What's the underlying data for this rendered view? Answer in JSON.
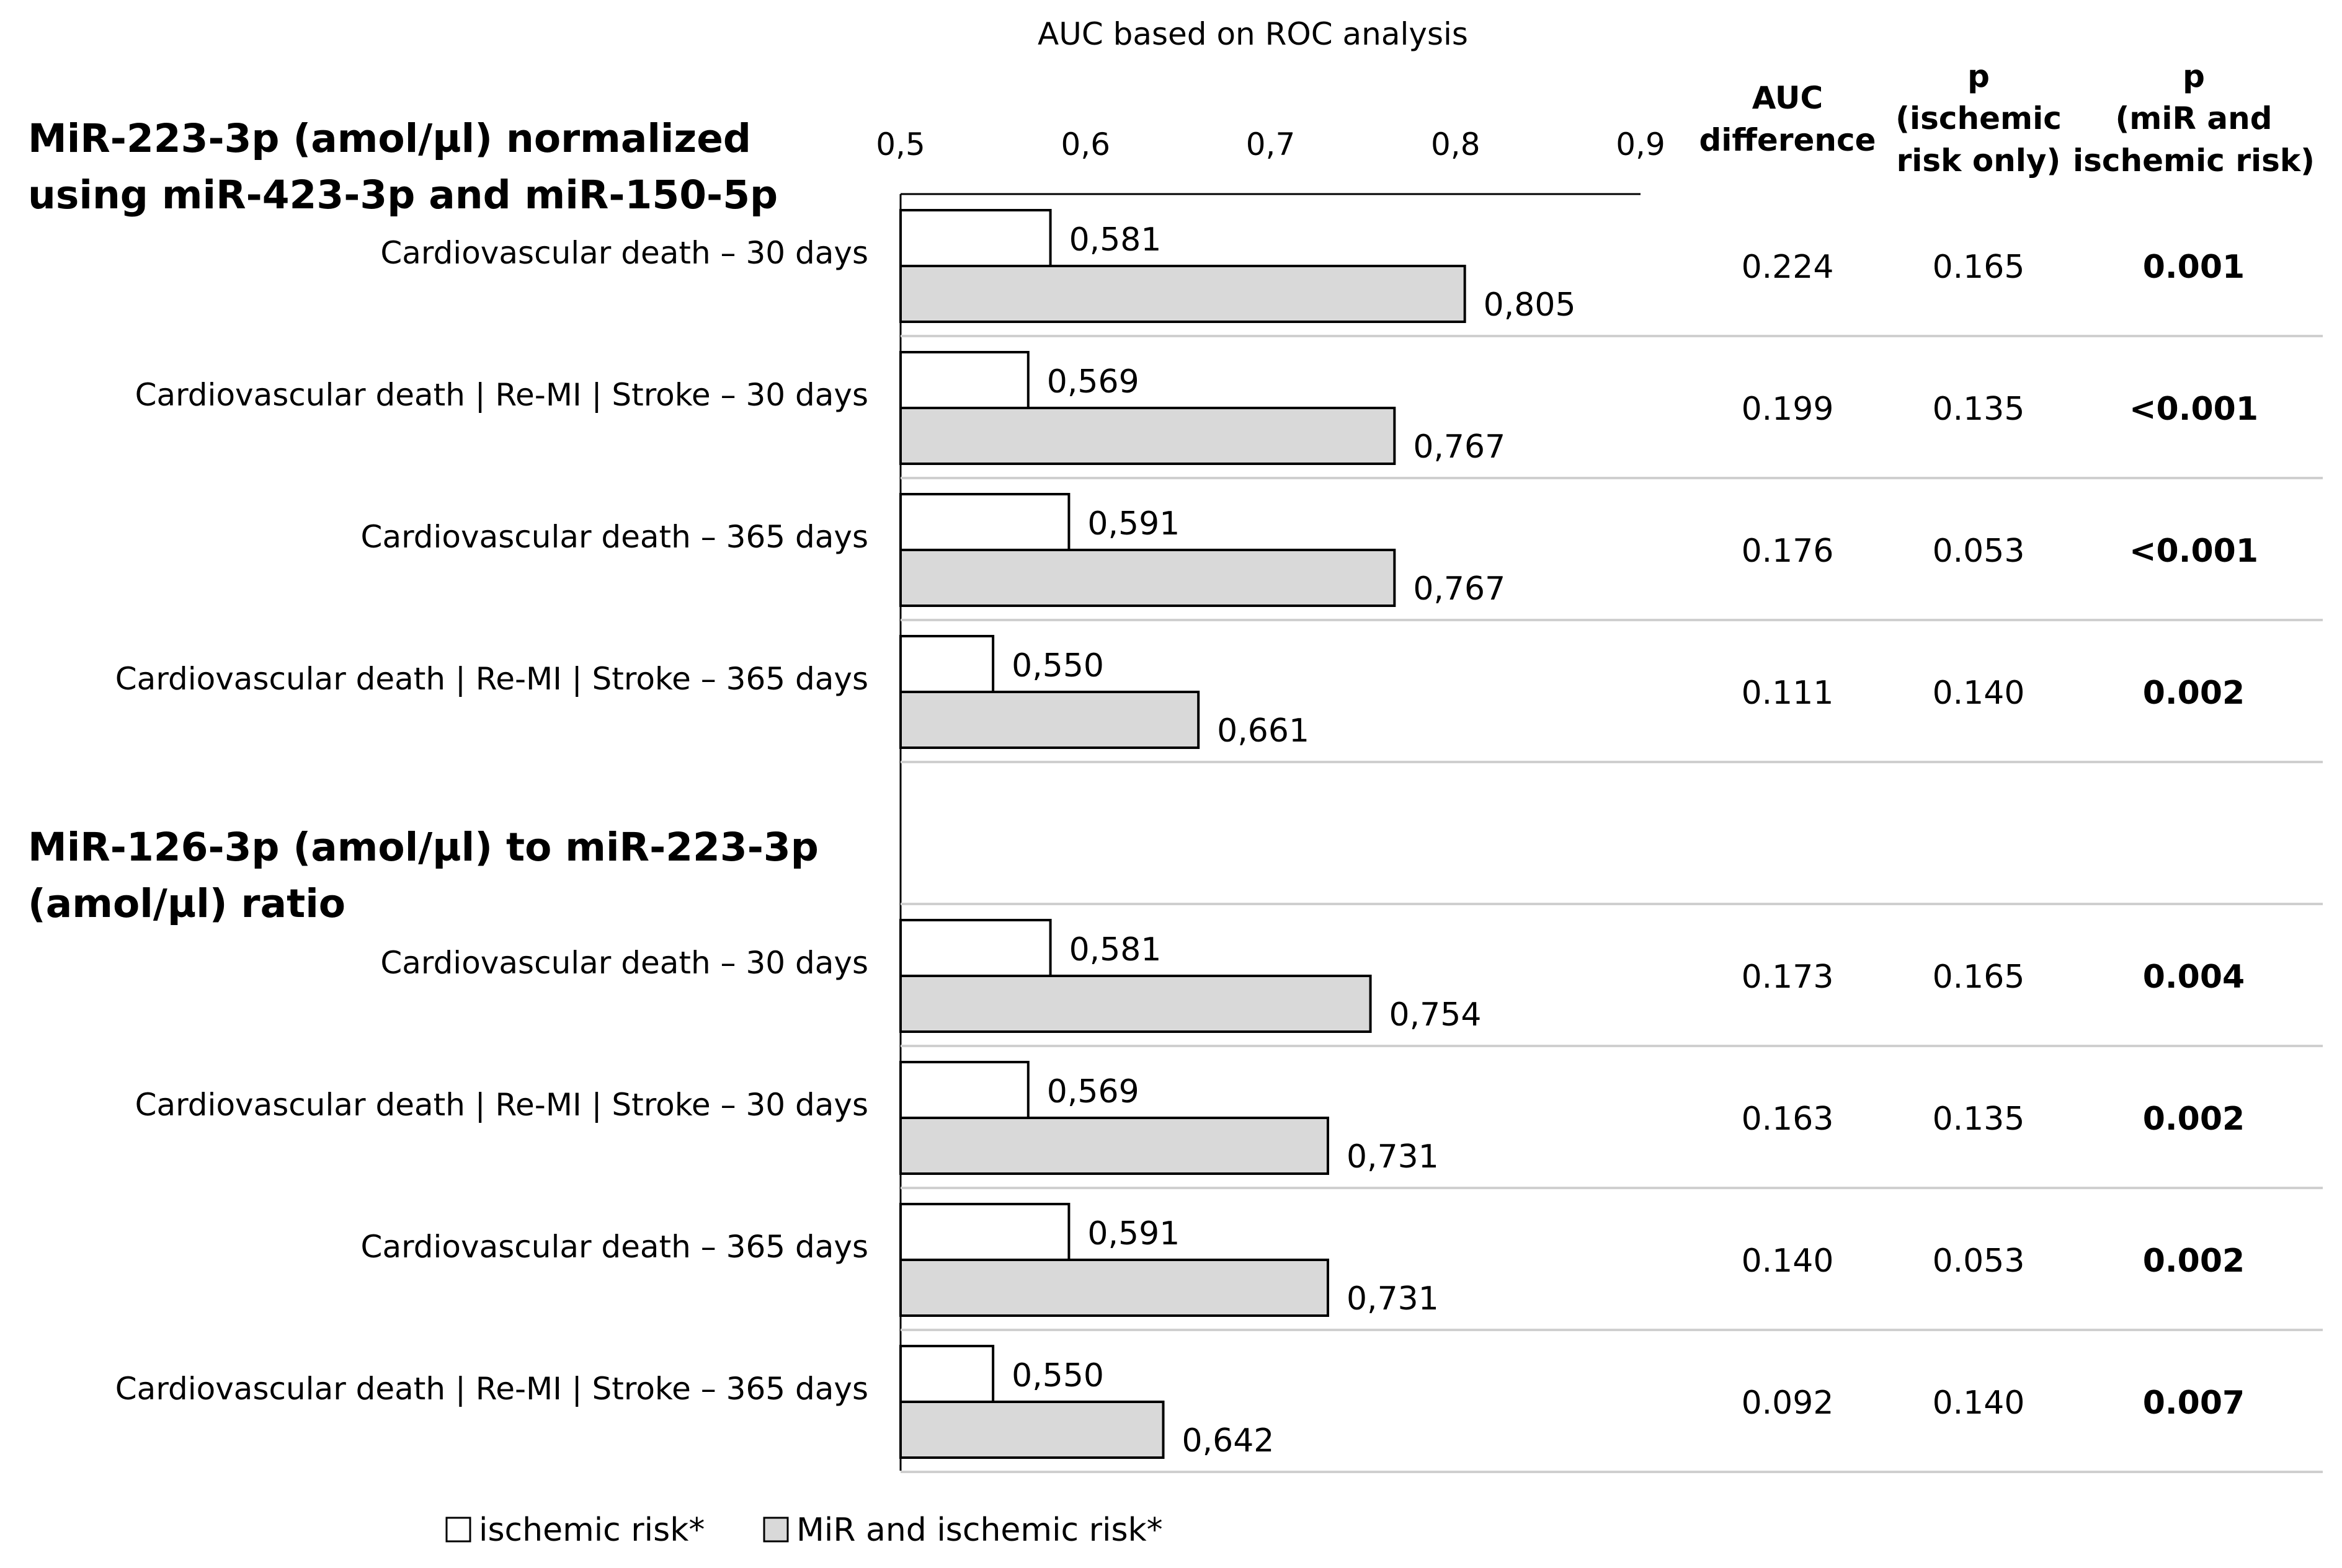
{
  "chart_data": {
    "type": "bar",
    "orientation": "horizontal",
    "title": "AUC based on ROC analysis",
    "xlim": [
      0.5,
      0.9
    ],
    "ticks": [
      "0,5",
      "0,6",
      "0,7",
      "0,8",
      "0,9"
    ],
    "tick_values": [
      0.5,
      0.6,
      0.7,
      0.8,
      0.9
    ],
    "columns": {
      "auc_diff": "AUC difference",
      "p_isch": "p (ischemic risk only)",
      "p_mir": "p (miR and ischemic risk)"
    },
    "legend": [
      {
        "name": "ischemic risk*",
        "color": "#ffffff"
      },
      {
        "name": "MiR and ischemic risk*",
        "color": "#d9d9d9"
      }
    ],
    "groups": [
      {
        "title": "MiR-223-3p (amol/µl) normalized using miR-423-3p and miR-150-5p",
        "rows": [
          {
            "label": "Cardiovascular death – 30  days",
            "ischemic": 0.581,
            "ischemic_label": "0,581",
            "mir": 0.805,
            "mir_label": "0,805",
            "auc_diff": "0.224",
            "p_isch": "0.165",
            "p_mir": "0.001"
          },
          {
            "label": "Cardiovascular death | Re-MI | Stroke – 30  days",
            "ischemic": 0.569,
            "ischemic_label": "0,569",
            "mir": 0.767,
            "mir_label": "0,767",
            "auc_diff": "0.199",
            "p_isch": "0.135",
            "p_mir": "<0.001"
          },
          {
            "label": "Cardiovascular death – 365  days",
            "ischemic": 0.591,
            "ischemic_label": "0,591",
            "mir": 0.767,
            "mir_label": "0,767",
            "auc_diff": "0.176",
            "p_isch": "0.053",
            "p_mir": "<0.001"
          },
          {
            "label": "Cardiovascular death | Re-MI | Stroke – 365  days",
            "ischemic": 0.55,
            "ischemic_label": "0,550",
            "mir": 0.661,
            "mir_label": "0,661",
            "auc_diff": "0.111",
            "p_isch": "0.140",
            "p_mir": "0.002"
          }
        ]
      },
      {
        "title": "MiR-126-3p (amol/µl) to miR-223-3p (amol/µl) ratio",
        "rows": [
          {
            "label": "Cardiovascular death – 30  days",
            "ischemic": 0.581,
            "ischemic_label": "0,581",
            "mir": 0.754,
            "mir_label": "0,754",
            "auc_diff": "0.173",
            "p_isch": "0.165",
            "p_mir": "0.004"
          },
          {
            "label": "Cardiovascular death | Re-MI | Stroke – 30  days",
            "ischemic": 0.569,
            "ischemic_label": "0,569",
            "mir": 0.731,
            "mir_label": "0,731",
            "auc_diff": "0.163",
            "p_isch": "0.135",
            "p_mir": "0.002"
          },
          {
            "label": "Cardiovascular death – 365  days",
            "ischemic": 0.591,
            "ischemic_label": "0,591",
            "mir": 0.731,
            "mir_label": "0,731",
            "auc_diff": "0.140",
            "p_isch": "0.053",
            "p_mir": "0.002"
          },
          {
            "label": "Cardiovascular death | Re-MI | Stroke – 365  days",
            "ischemic": 0.55,
            "ischemic_label": "0,550",
            "mir": 0.642,
            "mir_label": "0,642",
            "auc_diff": "0.092",
            "p_isch": "0.140",
            "p_mir": "0.007"
          }
        ]
      }
    ]
  }
}
